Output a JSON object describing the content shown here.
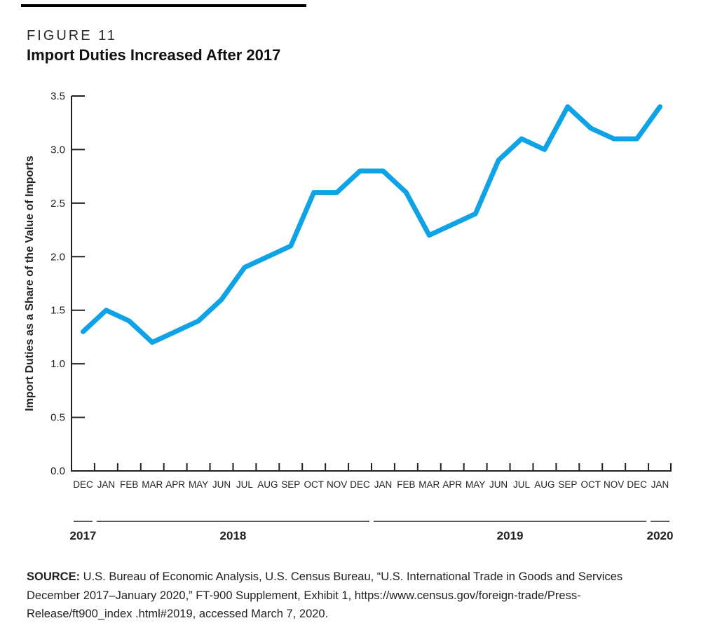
{
  "figure": {
    "kicker": "FIGURE 11",
    "title": "Import Duties Increased After 2017"
  },
  "source": {
    "label": "SOURCE:",
    "text": " U.S. Bureau of Economic Analysis, U.S. Census Bureau, “U.S. International Trade in Goods and Services December 2017–January 2020,” FT-900 Supplement, Exhibit 1, https://www.census.gov/foreign-trade/Press-Release/ft900_index .html#2019, accessed March 7, 2020."
  },
  "colors": {
    "line_blue": "#0da3e6",
    "axis": "#231f20",
    "text": "#231f20"
  },
  "chart_data": {
    "type": "line",
    "title": "Import Duties Increased After 2017",
    "xlabel": "",
    "ylabel": "Import Duties as a Share of the Value of Imports",
    "ylim": [
      0,
      3.5
    ],
    "ytick_labels": [
      "0.0",
      "0.5",
      "1.0",
      "1.5",
      "2.0",
      "2.5",
      "3.0",
      "3.5"
    ],
    "grid": false,
    "legend": false,
    "categories": [
      "DEC",
      "JAN",
      "FEB",
      "MAR",
      "APR",
      "MAY",
      "JUN",
      "JUL",
      "AUG",
      "SEP",
      "OCT",
      "NOV",
      "DEC",
      "JAN",
      "FEB",
      "MAR",
      "APR",
      "MAY",
      "JUN",
      "JUL",
      "AUG",
      "SEP",
      "OCT",
      "NOV",
      "DEC",
      "JAN"
    ],
    "year_groups": [
      {
        "label": "2017",
        "start": 0,
        "end": 0
      },
      {
        "label": "2018",
        "start": 1,
        "end": 12
      },
      {
        "label": "2019",
        "start": 13,
        "end": 24
      },
      {
        "label": "2020",
        "start": 25,
        "end": 25
      }
    ],
    "series": [
      {
        "name": "Import duties as a share of the value of imports",
        "color": "#0da3e6",
        "values": [
          1.3,
          1.5,
          1.4,
          1.2,
          1.3,
          1.4,
          1.6,
          1.9,
          2.0,
          2.1,
          2.6,
          2.6,
          2.8,
          2.8,
          2.6,
          2.2,
          2.3,
          2.4,
          2.9,
          3.1,
          3.0,
          3.4,
          3.2,
          3.1,
          3.1,
          3.4
        ]
      }
    ]
  }
}
